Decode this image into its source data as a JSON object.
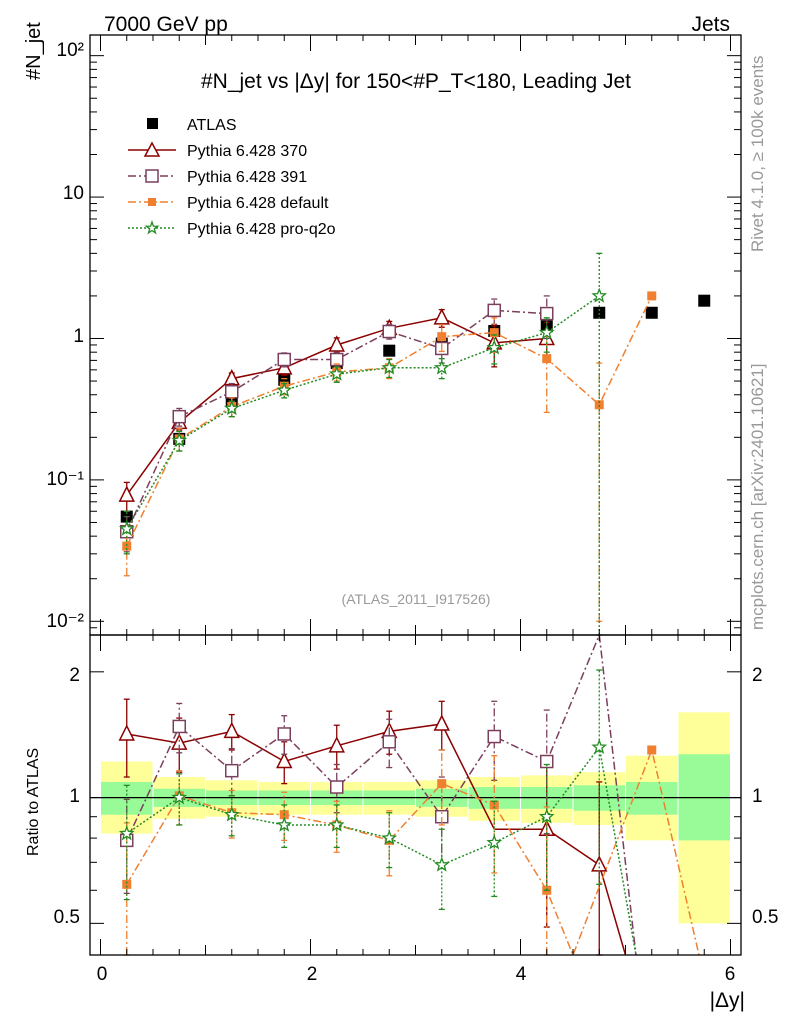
{
  "header": {
    "left": "7000 GeV pp",
    "right": "Jets",
    "side_top": "Rivet 4.1.0, ≥ 100k events",
    "side_bottom": "mcplots.cern.ch [arXiv:2401.10621]",
    "watermark": "(ATLAS_2011_I917526)"
  },
  "chart_data": [
    {
      "type": "scatter",
      "panel": "main",
      "title": "#N_jet vs |Δy| for 150<#P_T<180, Leading Jet",
      "ylabel": "#N_jet",
      "xlabel": "|Δy|",
      "yscale": "log",
      "xlim": [
        -0.1,
        6.1
      ],
      "ylim": [
        0.008,
        140
      ],
      "ytick_labels": [
        "10⁻²",
        "10⁻¹",
        "1",
        "10",
        "10²"
      ],
      "legend": [
        "ATLAS",
        "Pythia 6.428 370",
        "Pythia 6.428 391",
        "Pythia 6.428 default",
        "Pythia 6.428 pro-q2o"
      ],
      "series": [
        {
          "name": "ATLAS",
          "color": "#000000",
          "marker": "square-filled",
          "line": "none",
          "x": [
            0.25,
            0.75,
            1.25,
            1.75,
            2.25,
            2.75,
            3.25,
            3.75,
            4.25,
            4.75,
            5.25,
            5.75
          ],
          "y": [
            0.055,
            0.195,
            0.36,
            0.51,
            0.67,
            0.82,
            0.92,
            1.13,
            1.22,
            1.52,
            1.52,
            1.85
          ]
        },
        {
          "name": "Pythia 6.428 370",
          "color": "#8b0000",
          "marker": "triangle-open",
          "line": "solid",
          "x": [
            0.25,
            0.75,
            1.25,
            1.75,
            2.25,
            2.75,
            3.25,
            3.75,
            4.25
          ],
          "y": [
            0.078,
            0.255,
            0.52,
            0.62,
            0.9,
            1.18,
            1.4,
            0.93,
            1.0
          ],
          "err": [
            0.018,
            0.03,
            0.05,
            0.07,
            0.11,
            0.14,
            0.2,
            0.3,
            0.3
          ]
        },
        {
          "name": "Pythia 6.428 391",
          "color": "#7b3f5e",
          "marker": "square-open",
          "line": "dashdot",
          "x": [
            0.25,
            0.75,
            1.25,
            1.75,
            2.25,
            2.75,
            3.25,
            3.75,
            4.25
          ],
          "y": [
            0.043,
            0.28,
            0.42,
            0.71,
            0.71,
            1.12,
            0.85,
            1.58,
            1.5
          ],
          "err": [
            0.012,
            0.04,
            0.06,
            0.08,
            0.09,
            0.13,
            0.18,
            0.32,
            0.5
          ]
        },
        {
          "name": "Pythia 6.428 default",
          "color": "#f08030",
          "marker": "square-filled-small",
          "line": "dashdot",
          "x": [
            0.25,
            0.75,
            1.25,
            1.75,
            2.25,
            2.75,
            3.25,
            3.75,
            4.25,
            4.75,
            5.25
          ],
          "y": [
            0.034,
            0.195,
            0.33,
            0.46,
            0.58,
            0.62,
            1.03,
            1.1,
            0.72,
            0.34,
            2.0
          ],
          "err": [
            0.013,
            0.035,
            0.05,
            0.06,
            0.08,
            0.1,
            0.22,
            0.3,
            0.42,
            0.33,
            0.0
          ]
        },
        {
          "name": "Pythia 6.428 pro-q2o",
          "color": "#228b22",
          "marker": "star-open",
          "line": "dotted",
          "x": [
            0.25,
            0.75,
            1.25,
            1.75,
            2.25,
            2.75,
            3.25,
            3.75,
            4.25,
            4.75
          ],
          "y": [
            0.045,
            0.19,
            0.32,
            0.43,
            0.56,
            0.62,
            0.62,
            0.86,
            1.1,
            2.0
          ],
          "err": [
            0.015,
            0.03,
            0.04,
            0.05,
            0.07,
            0.09,
            0.1,
            0.2,
            0.3,
            2.0
          ]
        }
      ]
    },
    {
      "type": "scatter",
      "panel": "ratio",
      "ylabel": "Ratio to ATLAS",
      "xlabel": "|Δy|",
      "yscale": "log",
      "xlim": [
        -0.1,
        6.1
      ],
      "ylim": [
        0.42,
        2.45
      ],
      "ytick_labels": [
        "0.5",
        "1",
        "2"
      ],
      "xtick_labels": [
        "0",
        "2",
        "4",
        "6"
      ],
      "reference": 1.0,
      "bands": {
        "bins": [
          [
            0.0,
            0.5
          ],
          [
            0.5,
            1.0
          ],
          [
            1.0,
            1.5
          ],
          [
            1.5,
            2.0
          ],
          [
            2.0,
            2.5
          ],
          [
            2.5,
            3.0
          ],
          [
            3.0,
            3.5
          ],
          [
            3.5,
            4.0
          ],
          [
            4.0,
            4.5
          ],
          [
            4.5,
            5.0
          ],
          [
            5.0,
            5.5
          ],
          [
            5.5,
            6.0
          ]
        ],
        "stat_color": "#98fb98",
        "total_color": "#ffff99",
        "stat_lo": [
          0.91,
          0.95,
          0.96,
          0.96,
          0.96,
          0.96,
          0.95,
          0.94,
          0.94,
          0.93,
          0.91,
          0.79
        ],
        "stat_hi": [
          1.09,
          1.05,
          1.04,
          1.04,
          1.04,
          1.04,
          1.05,
          1.06,
          1.06,
          1.07,
          1.09,
          1.27
        ],
        "total_lo": [
          0.82,
          0.89,
          0.9,
          0.91,
          0.91,
          0.91,
          0.9,
          0.88,
          0.87,
          0.86,
          0.79,
          0.5
        ],
        "total_hi": [
          1.22,
          1.12,
          1.1,
          1.09,
          1.09,
          1.09,
          1.1,
          1.12,
          1.13,
          1.15,
          1.26,
          1.6
        ]
      },
      "series": [
        {
          "name": "Pythia 6.428 370",
          "color": "#8b0000",
          "marker": "triangle-open",
          "line": "solid",
          "x": [
            0.25,
            0.75,
            1.25,
            1.75,
            2.25,
            2.75,
            3.25,
            3.75,
            4.25,
            4.75,
            5.0
          ],
          "y": [
            1.42,
            1.35,
            1.44,
            1.22,
            1.33,
            1.44,
            1.5,
            0.84,
            0.84,
            0.69,
            0.4
          ],
          "err": [
            0.3,
            0.2,
            0.14,
            0.14,
            0.16,
            0.17,
            0.2,
            0.28,
            0.35,
            0.4,
            0.0
          ],
          "markers": [
            true,
            true,
            true,
            true,
            true,
            true,
            true,
            false,
            true,
            true,
            false
          ]
        },
        {
          "name": "Pythia 6.428 391",
          "color": "#7b3f5e",
          "marker": "square-open",
          "line": "dashdot",
          "x": [
            0.25,
            0.75,
            1.25,
            1.75,
            2.25,
            2.75,
            3.25,
            3.75,
            4.25,
            4.75,
            5.1
          ],
          "y": [
            0.79,
            1.48,
            1.16,
            1.42,
            1.06,
            1.36,
            0.9,
            1.4,
            1.22,
            2.6,
            0.4
          ],
          "err": [
            0.2,
            0.2,
            0.15,
            0.15,
            0.14,
            0.18,
            0.22,
            0.3,
            0.4,
            0.0,
            0.0
          ],
          "markers": [
            true,
            true,
            true,
            true,
            true,
            true,
            true,
            true,
            true,
            false,
            false
          ]
        },
        {
          "name": "Pythia 6.428 default",
          "color": "#f08030",
          "marker": "square-filled-small",
          "line": "dashdot",
          "x": [
            0.25,
            0.75,
            1.25,
            1.75,
            2.25,
            2.75,
            3.25,
            3.75,
            4.25,
            4.5,
            5.25,
            5.7
          ],
          "y": [
            0.62,
            1.01,
            0.92,
            0.91,
            0.86,
            0.79,
            1.08,
            0.96,
            0.6,
            0.4,
            1.3,
            0.4
          ],
          "err": [
            0.25,
            0.15,
            0.12,
            0.12,
            0.12,
            0.14,
            0.22,
            0.3,
            0.35,
            0.0,
            0.0,
            0.0
          ],
          "markers": [
            true,
            true,
            true,
            true,
            true,
            true,
            true,
            true,
            true,
            false,
            true,
            false
          ]
        },
        {
          "name": "Pythia 6.428 pro-q2o",
          "color": "#228b22",
          "marker": "star-open",
          "line": "dotted",
          "x": [
            0.25,
            0.75,
            1.25,
            1.75,
            2.25,
            2.75,
            3.25,
            3.75,
            4.25,
            4.75,
            5.1
          ],
          "y": [
            0.82,
            1.0,
            0.91,
            0.86,
            0.86,
            0.8,
            0.69,
            0.78,
            0.9,
            1.32,
            0.4
          ],
          "err": [
            0.25,
            0.14,
            0.1,
            0.1,
            0.1,
            0.12,
            0.15,
            0.2,
            0.3,
            0.7,
            0.0
          ],
          "markers": [
            true,
            true,
            true,
            true,
            true,
            true,
            true,
            true,
            true,
            true,
            false
          ]
        }
      ]
    }
  ]
}
